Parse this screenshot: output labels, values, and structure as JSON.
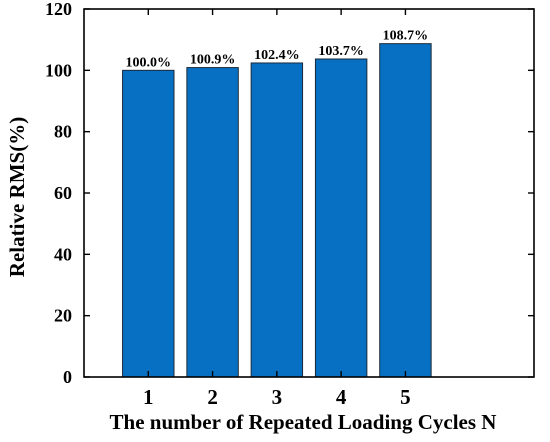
{
  "chart_data": {
    "type": "bar",
    "categories": [
      "1",
      "2",
      "3",
      "4",
      "5"
    ],
    "values": [
      100.0,
      100.9,
      102.4,
      103.7,
      108.7
    ],
    "data_labels": [
      "100.0%",
      "100.9%",
      "102.4%",
      "103.7%",
      "108.7%"
    ],
    "xlabel": "The number of Repeated Loading Cycles N",
    "ylabel": "Relative RMS(%)",
    "ylim": [
      0,
      120
    ],
    "yticks": [
      0,
      20,
      40,
      60,
      80,
      100,
      120
    ],
    "grid": false,
    "legend": "none",
    "colors": {
      "bar": "#0870c2",
      "bar_edge": "#1a2a3a",
      "axis": "#000000"
    }
  }
}
